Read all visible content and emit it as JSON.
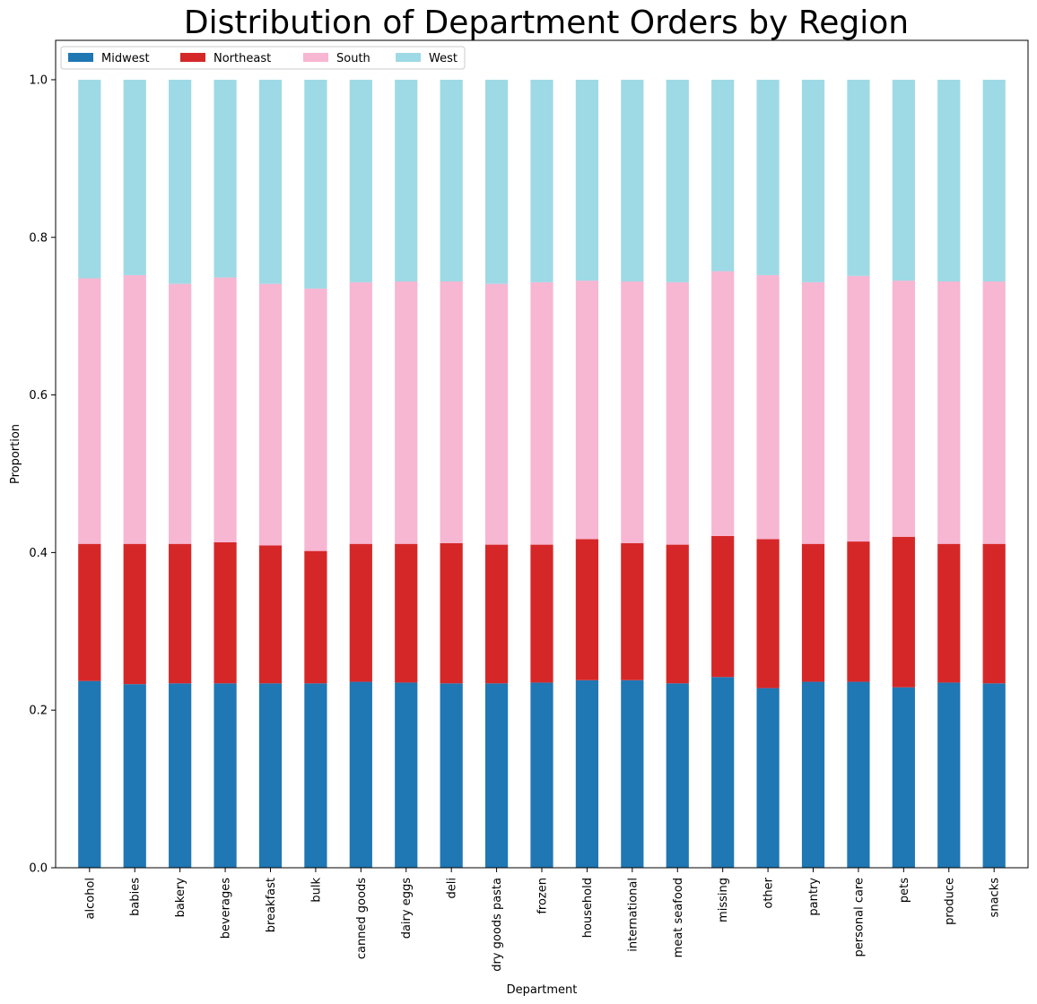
{
  "chart_data": {
    "type": "bar",
    "stacked": true,
    "title": "Distribution of Department Orders by Region",
    "xlabel": "Department",
    "ylabel": "Proportion",
    "ylim": [
      0,
      1.05
    ],
    "yticks": [
      0.0,
      0.2,
      0.4,
      0.6,
      0.8,
      1.0
    ],
    "ytick_labels": [
      "0.0",
      "0.2",
      "0.4",
      "0.6",
      "0.8",
      "1.0"
    ],
    "grid": false,
    "legend": "top-left",
    "categories": [
      "alcohol",
      "babies",
      "bakery",
      "beverages",
      "breakfast",
      "bulk",
      "canned goods",
      "dairy eggs",
      "deli",
      "dry goods pasta",
      "frozen",
      "household",
      "international",
      "meat seafood",
      "missing",
      "other",
      "pantry",
      "personal care",
      "pets",
      "produce",
      "snacks"
    ],
    "series": [
      {
        "name": "Midwest",
        "color": "#1f77b4",
        "values": [
          0.237,
          0.233,
          0.234,
          0.234,
          0.234,
          0.234,
          0.236,
          0.235,
          0.234,
          0.234,
          0.235,
          0.238,
          0.238,
          0.234,
          0.242,
          0.228,
          0.236,
          0.236,
          0.229,
          0.235,
          0.234
        ]
      },
      {
        "name": "Northeast",
        "color": "#d62728",
        "values": [
          0.174,
          0.178,
          0.177,
          0.179,
          0.175,
          0.168,
          0.175,
          0.176,
          0.178,
          0.176,
          0.175,
          0.179,
          0.174,
          0.176,
          0.179,
          0.189,
          0.175,
          0.178,
          0.191,
          0.176,
          0.177
        ]
      },
      {
        "name": "South",
        "color": "#f7b6d2",
        "values": [
          0.337,
          0.341,
          0.33,
          0.336,
          0.332,
          0.333,
          0.332,
          0.333,
          0.332,
          0.331,
          0.333,
          0.328,
          0.332,
          0.333,
          0.336,
          0.335,
          0.332,
          0.337,
          0.325,
          0.333,
          0.333
        ]
      },
      {
        "name": "West",
        "color": "#9edae5",
        "values": [
          0.252,
          0.248,
          0.259,
          0.251,
          0.259,
          0.265,
          0.257,
          0.256,
          0.256,
          0.259,
          0.257,
          0.255,
          0.256,
          0.257,
          0.243,
          0.248,
          0.257,
          0.249,
          0.255,
          0.256,
          0.256
        ]
      }
    ]
  }
}
